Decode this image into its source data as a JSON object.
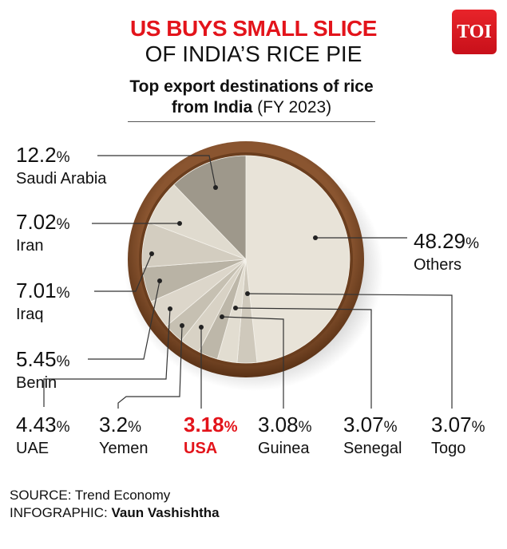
{
  "title_line1": "US BUYS SMALL SLICE",
  "title_line2": "OF INDIA’S RICE PIE",
  "subtitle_bold": "Top export destinations of rice from India",
  "subtitle_year": "(FY 2023)",
  "logo": "TOI",
  "source_label": "SOURCE:",
  "source": "Trend Economy",
  "infographic_label": "INFOGRAPHIC:",
  "infographic_author": "Vaun Vashishtha",
  "colors": {
    "accent": "#e3141b",
    "bowl": "#7a4a25"
  },
  "chart_data": {
    "type": "pie",
    "title": "Top export destinations of rice from India (FY 2023)",
    "unit": "%",
    "slices": [
      {
        "name": "Others",
        "value": 48.29,
        "display": "48.29"
      },
      {
        "name": "Togo",
        "value": 3.07,
        "display": "3.07"
      },
      {
        "name": "Senegal",
        "value": 3.07,
        "display": "3.07"
      },
      {
        "name": "Guinea",
        "value": 3.08,
        "display": "3.08"
      },
      {
        "name": "USA",
        "value": 3.18,
        "display": "3.18",
        "highlight": true
      },
      {
        "name": "Yemen",
        "value": 3.2,
        "display": "3.2"
      },
      {
        "name": "UAE",
        "value": 4.43,
        "display": "4.43"
      },
      {
        "name": "Benin",
        "value": 5.45,
        "display": "5.45"
      },
      {
        "name": "Iraq",
        "value": 7.01,
        "display": "7.01"
      },
      {
        "name": "Iran",
        "value": 7.02,
        "display": "7.02"
      },
      {
        "name": "Saudi Arabia",
        "value": 12.2,
        "display": "12.2"
      }
    ]
  }
}
